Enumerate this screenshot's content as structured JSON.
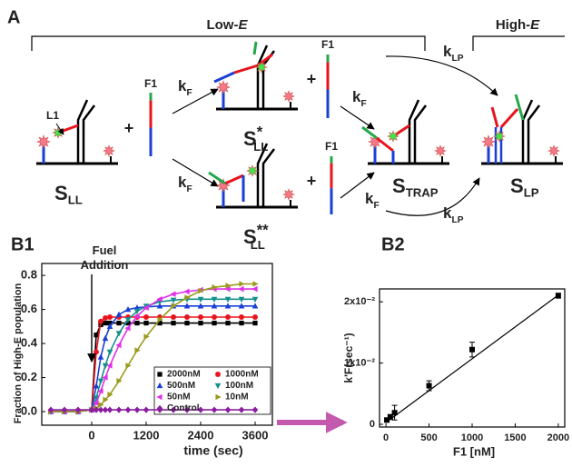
{
  "panel_a": {
    "label": "A",
    "groups": [
      {
        "label": "Low-",
        "italic": "E"
      },
      {
        "label": "High-",
        "italic": "E"
      }
    ],
    "strand_labels": [
      "L1",
      "F1",
      "F1",
      "F1"
    ],
    "plus": [
      "+",
      "+",
      "+"
    ],
    "states": [
      {
        "base": "S",
        "sub": "LL"
      },
      {
        "base": "S",
        "sup": "*",
        "sub": "LL"
      },
      {
        "base": "S",
        "sup": "**",
        "sub": "LL"
      },
      {
        "base": "S",
        "sub": "TRAP"
      },
      {
        "base": "S",
        "sub": "LP"
      }
    ],
    "rates": [
      {
        "base": "k",
        "sub": "F"
      },
      {
        "base": "k",
        "sub": "F"
      },
      {
        "base": "k",
        "sub": "F"
      },
      {
        "base": "k",
        "sub": "F"
      },
      {
        "base": "k",
        "sub": "LP"
      },
      {
        "base": "k",
        "sub": "LP"
      }
    ]
  },
  "chart_data": [
    {
      "type": "line",
      "title": "B1",
      "x_label": "time (sec)",
      "y_label": "Fraction of High-E population",
      "annotation": {
        "text": [
          "Fuel",
          "Addition"
        ],
        "x": 0
      },
      "x": [
        -900,
        -600,
        -300,
        0,
        100,
        200,
        300,
        400,
        600,
        800,
        1000,
        1200,
        1500,
        1800,
        2100,
        2400,
        2700,
        3000,
        3300,
        3600
      ],
      "series": [
        {
          "name": "2000nM",
          "color": "#000000",
          "marker": "square",
          "values": [
            0,
            0,
            0,
            0.01,
            0.45,
            0.51,
            0.52,
            0.52,
            0.52,
            0.52,
            0.52,
            0.52,
            0.52,
            0.52,
            0.52,
            0.52,
            0.52,
            0.52,
            0.52,
            0.52
          ]
        },
        {
          "name": "1000nM",
          "color": "#e8141c",
          "marker": "circle",
          "values": [
            0,
            0,
            0,
            0.01,
            0.35,
            0.53,
            0.55,
            0.555,
            0.555,
            0.555,
            0.555,
            0.555,
            0.555,
            0.555,
            0.555,
            0.555,
            0.555,
            0.555,
            0.555,
            0.555
          ]
        },
        {
          "name": "500nM",
          "color": "#1a3fd6",
          "marker": "tri-up",
          "values": [
            0,
            0,
            0,
            0.01,
            0.15,
            0.32,
            0.43,
            0.5,
            0.57,
            0.6,
            0.61,
            0.615,
            0.62,
            0.62,
            0.62,
            0.62,
            0.62,
            0.62,
            0.62,
            0.62
          ]
        },
        {
          "name": "100nM",
          "color": "#14908c",
          "marker": "tri-down",
          "values": [
            0,
            0,
            0,
            0.01,
            0.08,
            0.18,
            0.27,
            0.35,
            0.46,
            0.54,
            0.59,
            0.62,
            0.645,
            0.655,
            0.66,
            0.66,
            0.66,
            0.66,
            0.66,
            0.66
          ]
        },
        {
          "name": "50nM",
          "color": "#e030e8",
          "marker": "tri-left",
          "values": [
            0,
            0,
            0,
            0.01,
            0.05,
            0.12,
            0.2,
            0.27,
            0.39,
            0.49,
            0.56,
            0.61,
            0.66,
            0.69,
            0.705,
            0.715,
            0.72,
            0.72,
            0.72,
            0.72
          ]
        },
        {
          "name": "10nM",
          "color": "#9a9a1c",
          "marker": "tri-right",
          "values": [
            0,
            0,
            0,
            0.01,
            0.02,
            0.04,
            0.07,
            0.1,
            0.18,
            0.27,
            0.36,
            0.44,
            0.54,
            0.62,
            0.67,
            0.71,
            0.73,
            0.74,
            0.75,
            0.75
          ]
        },
        {
          "name": "Control",
          "color": "#8a1e9e",
          "marker": "diamond",
          "values": [
            0.01,
            0.01,
            0.01,
            0.01,
            0.01,
            0.01,
            0.01,
            0.01,
            0.01,
            0.01,
            0.01,
            0.01,
            0.01,
            0.01,
            0.01,
            0.01,
            0.01,
            0.01,
            0.01,
            0.01
          ]
        }
      ],
      "xlim": [
        -1100,
        3980
      ],
      "xticks": [
        0,
        1200,
        2400,
        3600
      ],
      "ylim": [
        -0.08,
        0.87
      ],
      "yticks": [
        {
          "value": 0,
          "label": "0.0"
        },
        0.2,
        0.4,
        0.6,
        0.8
      ]
    },
    {
      "type": "scatter",
      "title": "B2",
      "x_label": "F1 [nM]",
      "y_label": "k'F(sec⁻¹)",
      "x": [
        10,
        50,
        100,
        500,
        1000,
        2000
      ],
      "values": [
        0.0007,
        0.0012,
        0.0019,
        0.0063,
        0.0122,
        0.021
      ],
      "errors": [
        0.0003,
        0.0004,
        0.0012,
        0.0008,
        0.0012,
        0.0004
      ],
      "color": "#000000",
      "fit": {
        "x": [
          0,
          2000
        ],
        "values": [
          0.0003,
          0.0211
        ]
      },
      "xlim": [
        -75,
        2075
      ],
      "xticks": [
        0,
        500,
        1000,
        1500,
        2000
      ],
      "ylim": [
        -0.00044,
        0.0221
      ],
      "yticks": [
        0,
        {
          "value": 0.01,
          "label": "1x10⁻²"
        },
        {
          "value": 0.02,
          "label": "2x10⁻²"
        }
      ]
    }
  ]
}
